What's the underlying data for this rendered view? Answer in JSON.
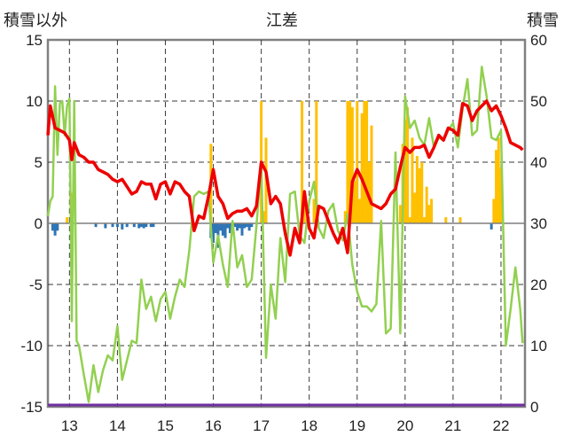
{
  "chart_data": {
    "type": "bar+line",
    "title": "江差",
    "left_axis_label": "積雪以外",
    "right_axis_label": "積雪",
    "left_ylim": [
      -15,
      15
    ],
    "left_ticks": [
      15,
      10,
      5,
      0,
      -5,
      -10,
      -15
    ],
    "right_ylim": [
      0,
      60
    ],
    "right_ticks": [
      60,
      50,
      40,
      30,
      20,
      10,
      0
    ],
    "xlim": [
      12.55,
      22.5
    ],
    "x_ticks": [
      13,
      14,
      15,
      16,
      17,
      18,
      19,
      20,
      21,
      22
    ],
    "grid": true,
    "colors": {
      "temp_anomaly": "#ee0000",
      "green_series": "#92d050",
      "snow_bars": "#ffc000",
      "precip_bars": "#2e75b6",
      "baseline": "#7030a0",
      "frame": "#808080",
      "grid": "#3a3a3a"
    },
    "series_red": {
      "x": [
        12.55,
        12.6,
        12.7,
        12.8,
        12.9,
        13.0,
        13.05,
        13.1,
        13.2,
        13.3,
        13.4,
        13.5,
        13.6,
        13.7,
        13.8,
        13.9,
        14.0,
        14.1,
        14.2,
        14.3,
        14.4,
        14.5,
        14.6,
        14.7,
        14.8,
        14.9,
        15.0,
        15.1,
        15.2,
        15.3,
        15.4,
        15.5,
        15.6,
        15.7,
        15.8,
        15.9,
        16.0,
        16.1,
        16.2,
        16.3,
        16.4,
        16.5,
        16.6,
        16.7,
        16.8,
        16.9,
        17.0,
        17.1,
        17.2,
        17.3,
        17.4,
        17.5,
        17.6,
        17.7,
        17.8,
        17.9,
        18.0,
        18.1,
        18.2,
        18.3,
        18.4,
        18.5,
        18.6,
        18.7,
        18.8,
        18.9,
        19.0,
        19.1,
        19.2,
        19.3,
        19.4,
        19.5,
        19.6,
        19.7,
        19.8,
        19.9,
        20.0,
        20.1,
        20.2,
        20.3,
        20.4,
        20.5,
        20.6,
        20.7,
        20.8,
        20.9,
        21.0,
        21.1,
        21.2,
        21.3,
        21.4,
        21.5,
        21.6,
        21.7,
        21.8,
        21.9,
        22.0,
        22.1,
        22.2,
        22.3,
        22.4,
        22.45
      ],
      "y": [
        7.2,
        9.6,
        7.8,
        7.6,
        7.4,
        6.8,
        5.2,
        6.6,
        5.6,
        5.4,
        5.0,
        5.0,
        4.4,
        4.2,
        4.0,
        3.6,
        3.4,
        3.6,
        3.0,
        2.4,
        2.6,
        3.4,
        3.2,
        3.2,
        2.0,
        3.2,
        3.4,
        2.4,
        3.4,
        3.2,
        2.6,
        2.2,
        -0.6,
        0.6,
        0.4,
        2.2,
        4.4,
        2.2,
        1.6,
        0.4,
        0.8,
        1.0,
        1.0,
        1.2,
        0.6,
        1.4,
        5.0,
        4.2,
        1.6,
        2.2,
        1.6,
        -0.8,
        -2.6,
        -0.4,
        -1.6,
        2.6,
        -0.4,
        -1.2,
        1.4,
        1.2,
        0.2,
        -0.8,
        -1.6,
        -0.4,
        -2.4,
        3.4,
        4.4,
        3.6,
        2.6,
        1.6,
        1.4,
        1.2,
        1.6,
        2.4,
        2.8,
        4.6,
        6.2,
        5.8,
        6.2,
        6.2,
        6.4,
        5.4,
        6.2,
        7.2,
        6.8,
        7.8,
        7.6,
        7.2,
        9.8,
        9.6,
        8.4,
        9.2,
        9.6,
        10.0,
        9.2,
        9.6,
        8.8,
        7.8,
        6.6,
        6.4,
        6.2,
        6.0
      ]
    },
    "series_green": {
      "x": [
        12.55,
        12.6,
        12.65,
        12.7,
        12.75,
        12.8,
        12.85,
        12.9,
        12.95,
        13.0,
        13.05,
        13.1,
        13.15,
        13.2,
        13.3,
        13.4,
        13.5,
        13.6,
        13.7,
        13.8,
        13.9,
        14.0,
        14.1,
        14.2,
        14.3,
        14.4,
        14.5,
        14.6,
        14.7,
        14.8,
        14.9,
        15.0,
        15.1,
        15.2,
        15.3,
        15.4,
        15.5,
        15.6,
        15.7,
        15.8,
        15.9,
        16.0,
        16.1,
        16.2,
        16.3,
        16.4,
        16.5,
        16.6,
        16.7,
        16.8,
        16.9,
        17.0,
        17.1,
        17.2,
        17.3,
        17.4,
        17.5,
        17.6,
        17.7,
        17.8,
        17.9,
        18.0,
        18.1,
        18.2,
        18.3,
        18.4,
        18.5,
        18.6,
        18.7,
        18.8,
        18.9,
        19.0,
        19.1,
        19.2,
        19.3,
        19.4,
        19.5,
        19.6,
        19.7,
        19.8,
        19.9,
        20.0,
        20.1,
        20.2,
        20.3,
        20.4,
        20.5,
        20.6,
        20.7,
        20.8,
        20.9,
        21.0,
        21.1,
        21.2,
        21.3,
        21.4,
        21.5,
        21.6,
        21.7,
        21.8,
        21.9,
        22.0,
        22.1,
        22.2,
        22.3,
        22.4,
        22.45
      ],
      "y": [
        0.6,
        1.8,
        2.2,
        11.2,
        5.6,
        9.8,
        10.0,
        7.2,
        9.6,
        10.2,
        -8.0,
        10.0,
        -9.6,
        -10.0,
        -12.4,
        -14.6,
        -11.6,
        -13.8,
        -12.0,
        -10.8,
        -11.2,
        -8.4,
        -12.8,
        -11.2,
        -9.6,
        -9.8,
        -4.6,
        -7.0,
        -6.0,
        -8.0,
        -6.2,
        -5.6,
        -7.8,
        -6.0,
        -4.6,
        -5.2,
        -2.2,
        2.2,
        2.6,
        2.4,
        2.6,
        -3.2,
        -1.0,
        -3.4,
        -5.2,
        0.2,
        -3.6,
        -2.6,
        -5.2,
        -4.6,
        -0.2,
        4.8,
        -11.0,
        -5.0,
        -7.8,
        -1.2,
        -4.8,
        2.4,
        2.6,
        -1.0,
        -1.6,
        1.8,
        3.4,
        -0.4,
        -1.2,
        1.0,
        1.6,
        -0.6,
        -1.4,
        0.8,
        -3.4,
        -5.6,
        -6.8,
        -6.8,
        -7.2,
        -6.6,
        0.2,
        -9.0,
        -8.6,
        5.8,
        -9.0,
        10.4,
        7.8,
        8.4,
        7.0,
        6.4,
        8.6,
        6.2,
        7.0,
        6.8,
        7.6,
        8.2,
        6.2,
        9.4,
        11.8,
        7.2,
        7.6,
        12.8,
        10.4,
        7.0,
        6.8,
        7.6,
        -10.0,
        -7.0,
        -3.6,
        -7.0,
        -9.8
      ]
    },
    "snow_bars": {
      "x": [
        12.95,
        13.05,
        15.95,
        17.0,
        17.05,
        17.1,
        17.85,
        17.9,
        18.1,
        18.15,
        18.75,
        18.8,
        18.85,
        18.9,
        18.95,
        19.0,
        19.05,
        19.1,
        19.15,
        19.2,
        19.25,
        19.3,
        19.9,
        19.95,
        20.0,
        20.05,
        20.1,
        20.15,
        20.2,
        20.25,
        20.3,
        20.35,
        20.4,
        20.45,
        20.5,
        20.55,
        20.85,
        21.15,
        21.85,
        21.9,
        21.95,
        22.0
      ],
      "y": [
        31,
        35,
        43,
        50,
        32,
        44,
        50,
        34,
        34,
        50,
        32,
        50,
        50,
        49,
        37,
        50,
        34,
        48,
        50,
        50,
        40,
        46,
        33,
        43,
        47,
        49,
        31,
        44,
        35,
        41,
        39,
        40,
        31,
        36,
        33,
        34,
        31,
        31,
        34,
        42,
        44,
        39
      ]
    },
    "precip_bars": {
      "x": [
        12.65,
        12.7,
        12.75,
        13.55,
        13.75,
        13.9,
        14.0,
        14.1,
        14.2,
        14.35,
        14.45,
        14.5,
        14.55,
        14.6,
        14.7,
        14.75,
        15.95,
        16.0,
        16.05,
        16.1,
        16.15,
        16.2,
        16.25,
        16.3,
        16.35,
        16.4,
        16.45,
        16.5,
        16.55,
        16.6,
        16.65,
        16.7,
        16.75,
        16.8,
        21.8
      ],
      "y": [
        -0.6,
        -1.0,
        -0.6,
        -0.3,
        -0.4,
        -0.3,
        -0.3,
        -0.5,
        -0.3,
        -0.3,
        -0.4,
        -0.3,
        -0.4,
        -0.3,
        -0.3,
        -0.3,
        -1.2,
        -1.6,
        -0.8,
        -2.0,
        -0.6,
        -1.0,
        -1.2,
        -0.4,
        -0.8,
        -0.6,
        -0.3,
        -0.6,
        -0.4,
        -1.0,
        -0.4,
        -0.3,
        -0.6,
        -0.3,
        -0.5
      ]
    }
  }
}
